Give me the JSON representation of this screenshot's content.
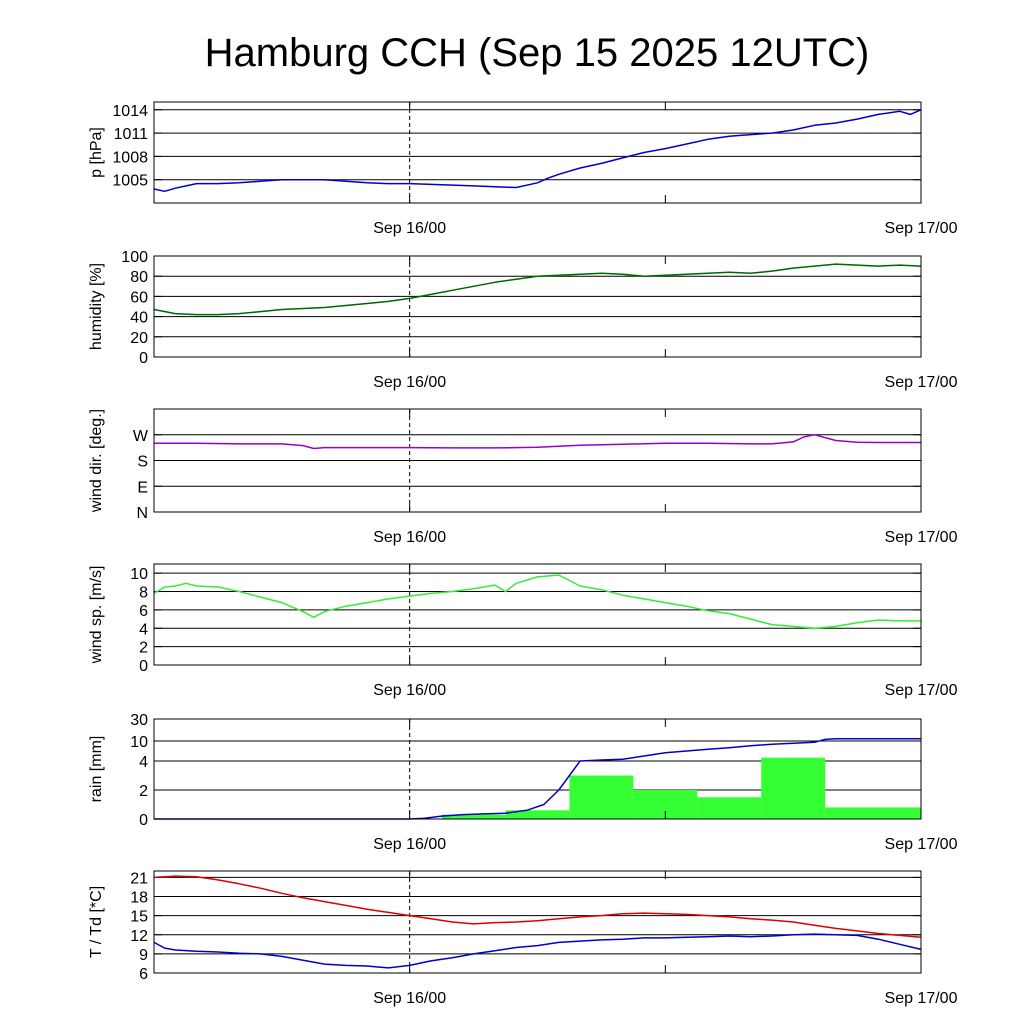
{
  "title": "Hamburg CCH (Sep 15 2025 12UTC)",
  "x_tick_labels": [
    "Sep 16/00",
    "Sep 17/00"
  ],
  "chart_data": [
    {
      "type": "line",
      "ylabel": "p [hPa]",
      "ylim": [
        1002,
        1015
      ],
      "yticks": [
        1005,
        1008,
        1011,
        1014
      ],
      "ytick_labels": [
        "1005",
        "1008",
        "1011",
        "1014"
      ],
      "xlim_hours": [
        0,
        36
      ],
      "series": [
        {
          "color": "#0000cc",
          "x": [
            0,
            0.5,
            1,
            1.5,
            2,
            3,
            4,
            5,
            6,
            7,
            8,
            9,
            10,
            11,
            12,
            13,
            14,
            15,
            16,
            17,
            18,
            18.5,
            19,
            20,
            21,
            22,
            23,
            24,
            25,
            26,
            27,
            28,
            29,
            30,
            31,
            32,
            33,
            34,
            35,
            35.5,
            36
          ],
          "y": [
            1003.8,
            1003.5,
            1003.9,
            1004.2,
            1004.5,
            1004.5,
            1004.6,
            1004.8,
            1005.0,
            1005.0,
            1005.0,
            1004.8,
            1004.6,
            1004.5,
            1004.5,
            1004.4,
            1004.3,
            1004.2,
            1004.1,
            1004.0,
            1004.6,
            1005.2,
            1005.7,
            1006.5,
            1007.1,
            1007.8,
            1008.5,
            1009.0,
            1009.6,
            1010.2,
            1010.6,
            1010.8,
            1011.0,
            1011.4,
            1012.0,
            1012.3,
            1012.8,
            1013.4,
            1013.8,
            1013.4,
            1014.0
          ]
        }
      ]
    },
    {
      "type": "line",
      "ylabel": "humidity [%]",
      "ylim": [
        0,
        100
      ],
      "yticks": [
        0,
        20,
        40,
        60,
        80,
        100
      ],
      "ytick_labels": [
        "0",
        "20",
        "40",
        "60",
        "80",
        "100"
      ],
      "xlim_hours": [
        0,
        36
      ],
      "series": [
        {
          "color": "#006600",
          "x": [
            0,
            1,
            2,
            3,
            4,
            5,
            6,
            7,
            8,
            9,
            10,
            11,
            12,
            13,
            14,
            15,
            16,
            17,
            18,
            19,
            20,
            21,
            22,
            23,
            24,
            25,
            26,
            27,
            28,
            29,
            30,
            31,
            32,
            33,
            34,
            35,
            36
          ],
          "y": [
            47,
            43,
            42,
            42,
            43,
            45,
            47,
            48,
            49,
            51,
            53,
            55,
            58,
            62,
            66,
            70,
            74,
            77,
            80,
            81,
            82,
            83,
            82,
            80,
            81,
            82,
            83,
            84,
            83,
            85,
            88,
            90,
            92,
            91,
            90,
            91,
            90
          ]
        }
      ]
    },
    {
      "type": "line",
      "ylabel": "wind dir. [deg.]",
      "ylim": [
        0,
        360
      ],
      "yticks": [
        0,
        90,
        180,
        270
      ],
      "ytick_labels": [
        "N",
        "E",
        "S",
        "W"
      ],
      "xlim_hours": [
        0,
        36
      ],
      "series": [
        {
          "color": "#9900cc",
          "x": [
            0,
            2,
            4,
            6,
            7,
            7.5,
            8,
            10,
            12,
            14,
            16,
            18,
            20,
            22,
            24,
            26,
            28,
            29,
            30,
            30.5,
            31,
            32,
            33,
            34,
            36
          ],
          "y": [
            240,
            240,
            238,
            238,
            232,
            222,
            225,
            225,
            225,
            224,
            224,
            226,
            233,
            237,
            240,
            240,
            238,
            238,
            245,
            262,
            270,
            250,
            244,
            243,
            243
          ]
        }
      ]
    },
    {
      "type": "line",
      "ylabel": "wind sp. [m/s]",
      "ylim": [
        0,
        11
      ],
      "yticks": [
        0,
        2,
        4,
        6,
        8,
        10
      ],
      "ytick_labels": [
        "0",
        "2",
        "4",
        "6",
        "8",
        "10"
      ],
      "xlim_hours": [
        0,
        36
      ],
      "series": [
        {
          "color": "#33ee33",
          "x": [
            0,
            0.5,
            1,
            1.5,
            2,
            3,
            4,
            5,
            6,
            7,
            7.5,
            8,
            9,
            10,
            11,
            12,
            13,
            14,
            15,
            16,
            16.5,
            17,
            18,
            19,
            20,
            21,
            22,
            23,
            24,
            25,
            26,
            27,
            28,
            29,
            30,
            31,
            32,
            33,
            34,
            35,
            36
          ],
          "y": [
            7.8,
            8.5,
            8.6,
            8.9,
            8.6,
            8.5,
            8.0,
            7.4,
            6.8,
            5.8,
            5.2,
            5.8,
            6.4,
            6.8,
            7.2,
            7.5,
            7.8,
            8.0,
            8.3,
            8.7,
            8.0,
            8.9,
            9.6,
            9.8,
            8.6,
            8.2,
            7.6,
            7.2,
            6.8,
            6.4,
            5.9,
            5.6,
            5.0,
            4.4,
            4.2,
            4.0,
            4.2,
            4.6,
            4.9,
            4.8,
            4.8
          ]
        }
      ]
    },
    {
      "type": "bar+line",
      "ylabel": "rain [mm]",
      "ylim": [
        0,
        30
      ],
      "yticks": [
        0,
        2,
        4,
        10,
        30
      ],
      "ytick_labels": [
        "0",
        "2",
        "4",
        "10",
        "30"
      ],
      "scale": "nonlinear",
      "xlim_hours": [
        0,
        36
      ],
      "bars": {
        "color": "#33ff33",
        "x_start": [
          13.5,
          16.5,
          19.5,
          22.5,
          25.5,
          28.5,
          31.5
        ],
        "x_end": [
          16.5,
          19.5,
          22.5,
          25.5,
          28.5,
          31.5,
          36
        ],
        "values": [
          0.3,
          0.6,
          3.0,
          2.0,
          1.5,
          5.0,
          0.8
        ]
      },
      "series": [
        {
          "color": "#0000cc",
          "x": [
            0,
            12,
            12.7,
            13.5,
            14.5,
            15.5,
            16.5,
            17.5,
            18.3,
            19,
            20,
            21,
            22,
            23,
            24,
            25,
            26,
            27,
            28,
            29,
            30,
            31,
            31.5,
            32,
            33,
            34,
            35,
            36
          ],
          "y": [
            0,
            0,
            0.05,
            0.2,
            0.3,
            0.35,
            0.4,
            0.6,
            1.0,
            2.0,
            4.0,
            4.3,
            4.5,
            5.5,
            6.5,
            7.0,
            7.5,
            8.0,
            8.6,
            9.0,
            9.3,
            9.6,
            11.5,
            12.0,
            12.0,
            12.0,
            12.0,
            12.0
          ]
        }
      ]
    },
    {
      "type": "line",
      "ylabel": "T / Td [*C]",
      "ylim": [
        6,
        22
      ],
      "yticks": [
        6,
        9,
        12,
        15,
        18,
        21
      ],
      "ytick_labels": [
        "6",
        "9",
        "12",
        "15",
        "18",
        "21"
      ],
      "xlim_hours": [
        0,
        36
      ],
      "series": [
        {
          "color": "#dd0000",
          "x": [
            0,
            1,
            2,
            3,
            4,
            5,
            6,
            7,
            8,
            9,
            10,
            11,
            12,
            13,
            14,
            15,
            16,
            17,
            18,
            19,
            20,
            21,
            22,
            23,
            24,
            25,
            26,
            27,
            28,
            29,
            30,
            31,
            32,
            33,
            34,
            35,
            36
          ],
          "y": [
            21.0,
            21.2,
            21.1,
            20.6,
            20.0,
            19.3,
            18.5,
            17.8,
            17.2,
            16.6,
            16.0,
            15.5,
            15.0,
            14.5,
            14.0,
            13.7,
            13.9,
            14.0,
            14.2,
            14.5,
            14.8,
            15.0,
            15.3,
            15.4,
            15.3,
            15.2,
            15.0,
            14.8,
            14.5,
            14.3,
            14.0,
            13.5,
            13.0,
            12.6,
            12.2,
            11.9,
            11.6
          ]
        },
        {
          "color": "#0000cc",
          "x": [
            0,
            0.5,
            1,
            2,
            3,
            4,
            5,
            6,
            7,
            8,
            9,
            10,
            11,
            12,
            13,
            14,
            15,
            16,
            17,
            18,
            19,
            20,
            21,
            22,
            23,
            24,
            25,
            26,
            27,
            28,
            29,
            30,
            31,
            32,
            33,
            34,
            35,
            36
          ],
          "y": [
            10.8,
            9.9,
            9.6,
            9.4,
            9.3,
            9.1,
            9.0,
            8.6,
            8.0,
            7.4,
            7.2,
            7.1,
            6.8,
            7.2,
            7.9,
            8.4,
            9.0,
            9.5,
            10.0,
            10.3,
            10.8,
            11.0,
            11.2,
            11.3,
            11.5,
            11.5,
            11.6,
            11.7,
            11.8,
            11.7,
            11.8,
            12.0,
            12.1,
            12.0,
            11.9,
            11.3,
            10.5,
            9.7
          ]
        }
      ]
    }
  ]
}
